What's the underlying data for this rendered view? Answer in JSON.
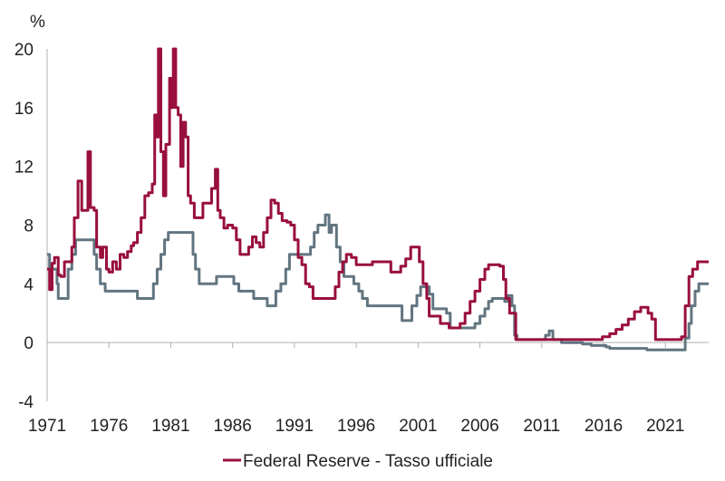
{
  "chart_data": {
    "type": "line",
    "unit_label": "%",
    "ylim": [
      -4,
      20
    ],
    "xlim": [
      1971,
      2024.5
    ],
    "y_ticks": [
      "20",
      "16",
      "12",
      "8",
      "4",
      "0",
      "-4"
    ],
    "y_tick_values": [
      20,
      16,
      12,
      8,
      4,
      0,
      -4
    ],
    "x_ticks": [
      "1971",
      "1976",
      "1981",
      "1986",
      "1991",
      "1996",
      "2001",
      "2006",
      "2011",
      "2016",
      "2021"
    ],
    "x_tick_values": [
      1971,
      1976,
      1981,
      1986,
      1991,
      1996,
      2001,
      2006,
      2011,
      2016,
      2021
    ],
    "grid": false,
    "legend_position": "bottom",
    "series": [
      {
        "name": "Federal Reserve - Tasso ufficiale",
        "color": "#990f3d",
        "points": [
          [
            1971.0,
            5.0
          ],
          [
            1971.2,
            3.6
          ],
          [
            1971.4,
            5.4
          ],
          [
            1971.6,
            5.8
          ],
          [
            1971.9,
            4.6
          ],
          [
            1972.1,
            4.5
          ],
          [
            1972.4,
            5.5
          ],
          [
            1972.7,
            5.5
          ],
          [
            1973.0,
            6.5
          ],
          [
            1973.2,
            8.5
          ],
          [
            1973.5,
            11.0
          ],
          [
            1973.8,
            9.0
          ],
          [
            1974.0,
            9.0
          ],
          [
            1974.3,
            13.0
          ],
          [
            1974.5,
            9.2
          ],
          [
            1974.8,
            9.0
          ],
          [
            1975.0,
            6.5
          ],
          [
            1975.3,
            5.8
          ],
          [
            1975.5,
            6.5
          ],
          [
            1975.8,
            5.0
          ],
          [
            1976.0,
            4.8
          ],
          [
            1976.3,
            5.5
          ],
          [
            1976.6,
            5.0
          ],
          [
            1976.9,
            6.0
          ],
          [
            1977.2,
            5.8
          ],
          [
            1977.5,
            6.2
          ],
          [
            1977.8,
            6.6
          ],
          [
            1978.0,
            6.8
          ],
          [
            1978.3,
            7.5
          ],
          [
            1978.6,
            8.5
          ],
          [
            1978.9,
            10.0
          ],
          [
            1979.2,
            10.2
          ],
          [
            1979.5,
            10.8
          ],
          [
            1979.7,
            15.5
          ],
          [
            1979.8,
            14.0
          ],
          [
            1980.0,
            20.0
          ],
          [
            1980.2,
            13.0
          ],
          [
            1980.4,
            10.0
          ],
          [
            1980.6,
            13.5
          ],
          [
            1980.9,
            18.0
          ],
          [
            1981.0,
            16.0
          ],
          [
            1981.2,
            20.0
          ],
          [
            1981.4,
            16.0
          ],
          [
            1981.6,
            15.5
          ],
          [
            1981.8,
            12.0
          ],
          [
            1982.0,
            15.0
          ],
          [
            1982.2,
            14.0
          ],
          [
            1982.4,
            10.0
          ],
          [
            1982.6,
            9.5
          ],
          [
            1982.9,
            8.5
          ],
          [
            1983.3,
            8.5
          ],
          [
            1983.6,
            9.5
          ],
          [
            1984.0,
            9.5
          ],
          [
            1984.3,
            10.5
          ],
          [
            1984.6,
            11.8
          ],
          [
            1984.8,
            9.0
          ],
          [
            1985.0,
            8.5
          ],
          [
            1985.3,
            7.8
          ],
          [
            1985.6,
            8.0
          ],
          [
            1986.0,
            7.8
          ],
          [
            1986.3,
            7.0
          ],
          [
            1986.6,
            6.0
          ],
          [
            1986.9,
            6.0
          ],
          [
            1987.3,
            6.5
          ],
          [
            1987.6,
            7.2
          ],
          [
            1987.9,
            6.8
          ],
          [
            1988.2,
            6.5
          ],
          [
            1988.5,
            7.5
          ],
          [
            1988.8,
            8.5
          ],
          [
            1989.1,
            9.7
          ],
          [
            1989.4,
            9.5
          ],
          [
            1989.7,
            8.8
          ],
          [
            1990.0,
            8.3
          ],
          [
            1990.4,
            8.2
          ],
          [
            1990.7,
            8.0
          ],
          [
            1991.0,
            7.0
          ],
          [
            1991.3,
            5.8
          ],
          [
            1991.6,
            5.3
          ],
          [
            1991.9,
            4.0
          ],
          [
            1992.2,
            3.8
          ],
          [
            1992.5,
            3.0
          ],
          [
            1993.0,
            3.0
          ],
          [
            1993.5,
            3.0
          ],
          [
            1994.0,
            3.0
          ],
          [
            1994.3,
            3.8
          ],
          [
            1994.6,
            4.8
          ],
          [
            1994.9,
            5.5
          ],
          [
            1995.2,
            6.0
          ],
          [
            1995.6,
            5.8
          ],
          [
            1996.0,
            5.3
          ],
          [
            1996.5,
            5.3
          ],
          [
            1997.0,
            5.3
          ],
          [
            1997.3,
            5.5
          ],
          [
            1998.0,
            5.5
          ],
          [
            1998.5,
            5.5
          ],
          [
            1998.8,
            4.8
          ],
          [
            1999.2,
            4.8
          ],
          [
            1999.6,
            5.2
          ],
          [
            2000.0,
            5.7
          ],
          [
            2000.4,
            6.5
          ],
          [
            2000.9,
            6.5
          ],
          [
            2001.1,
            5.5
          ],
          [
            2001.4,
            4.0
          ],
          [
            2001.7,
            3.0
          ],
          [
            2001.9,
            1.8
          ],
          [
            2002.3,
            1.8
          ],
          [
            2002.8,
            1.3
          ],
          [
            2003.2,
            1.3
          ],
          [
            2003.5,
            1.0
          ],
          [
            2004.0,
            1.0
          ],
          [
            2004.4,
            1.3
          ],
          [
            2004.8,
            2.0
          ],
          [
            2005.2,
            2.8
          ],
          [
            2005.6,
            3.5
          ],
          [
            2006.0,
            4.3
          ],
          [
            2006.4,
            5.0
          ],
          [
            2006.7,
            5.3
          ],
          [
            2007.3,
            5.3
          ],
          [
            2007.6,
            5.2
          ],
          [
            2007.9,
            4.3
          ],
          [
            2008.1,
            3.0
          ],
          [
            2008.4,
            2.0
          ],
          [
            2008.7,
            2.0
          ],
          [
            2008.9,
            0.2
          ],
          [
            2009.5,
            0.2
          ],
          [
            2011.0,
            0.2
          ],
          [
            2013.0,
            0.2
          ],
          [
            2014.5,
            0.2
          ],
          [
            2015.9,
            0.4
          ],
          [
            2016.5,
            0.6
          ],
          [
            2017.0,
            0.9
          ],
          [
            2017.5,
            1.2
          ],
          [
            2018.0,
            1.6
          ],
          [
            2018.5,
            2.1
          ],
          [
            2019.0,
            2.4
          ],
          [
            2019.4,
            2.4
          ],
          [
            2019.6,
            2.0
          ],
          [
            2019.9,
            1.6
          ],
          [
            2020.2,
            0.2
          ],
          [
            2021.0,
            0.2
          ],
          [
            2022.0,
            0.2
          ],
          [
            2022.3,
            0.4
          ],
          [
            2022.6,
            2.5
          ],
          [
            2022.9,
            4.5
          ],
          [
            2023.2,
            5.0
          ],
          [
            2023.6,
            5.5
          ],
          [
            2024.0,
            5.5
          ],
          [
            2024.5,
            5.5
          ]
        ]
      },
      {
        "name": "",
        "color": "#627580",
        "points": [
          [
            1971.0,
            6.0
          ],
          [
            1971.2,
            5.0
          ],
          [
            1971.5,
            5.0
          ],
          [
            1971.8,
            4.0
          ],
          [
            1971.9,
            3.0
          ],
          [
            1972.5,
            3.0
          ],
          [
            1972.7,
            5.0
          ],
          [
            1973.0,
            6.0
          ],
          [
            1973.3,
            7.0
          ],
          [
            1974.0,
            7.0
          ],
          [
            1974.5,
            7.0
          ],
          [
            1974.8,
            6.0
          ],
          [
            1975.0,
            5.0
          ],
          [
            1975.3,
            4.0
          ],
          [
            1975.7,
            3.5
          ],
          [
            1977.0,
            3.5
          ],
          [
            1978.0,
            3.5
          ],
          [
            1978.3,
            3.0
          ],
          [
            1979.3,
            3.0
          ],
          [
            1979.6,
            4.0
          ],
          [
            1979.9,
            5.0
          ],
          [
            1980.2,
            6.0
          ],
          [
            1980.5,
            7.0
          ],
          [
            1980.8,
            7.5
          ],
          [
            1982.0,
            7.5
          ],
          [
            1982.5,
            7.5
          ],
          [
            1982.8,
            6.0
          ],
          [
            1983.0,
            5.0
          ],
          [
            1983.3,
            4.0
          ],
          [
            1984.5,
            4.0
          ],
          [
            1984.7,
            4.5
          ],
          [
            1985.8,
            4.5
          ],
          [
            1986.1,
            4.0
          ],
          [
            1986.5,
            3.5
          ],
          [
            1987.4,
            3.5
          ],
          [
            1987.7,
            3.0
          ],
          [
            1988.5,
            3.0
          ],
          [
            1988.8,
            2.5
          ],
          [
            1989.2,
            2.5
          ],
          [
            1989.5,
            3.5
          ],
          [
            1989.9,
            4.0
          ],
          [
            1990.3,
            5.0
          ],
          [
            1990.6,
            6.0
          ],
          [
            1992.0,
            6.0
          ],
          [
            1992.3,
            6.5
          ],
          [
            1992.6,
            7.5
          ],
          [
            1992.9,
            8.0
          ],
          [
            1993.2,
            8.0
          ],
          [
            1993.5,
            8.7
          ],
          [
            1993.8,
            7.5
          ],
          [
            1994.0,
            8.0
          ],
          [
            1994.4,
            6.5
          ],
          [
            1994.7,
            5.5
          ],
          [
            1995.0,
            4.5
          ],
          [
            1995.4,
            4.5
          ],
          [
            1995.8,
            4.0
          ],
          [
            1996.2,
            3.5
          ],
          [
            1996.5,
            3.0
          ],
          [
            1996.9,
            2.5
          ],
          [
            1998.0,
            2.5
          ],
          [
            1999.0,
            2.5
          ],
          [
            1999.6,
            2.5
          ],
          [
            1999.7,
            1.5
          ],
          [
            2000.2,
            1.5
          ],
          [
            2000.5,
            2.5
          ],
          [
            2000.9,
            3.2
          ],
          [
            2001.2,
            3.8
          ],
          [
            2001.6,
            3.8
          ],
          [
            2001.9,
            3.3
          ],
          [
            2002.2,
            2.3
          ],
          [
            2003.0,
            2.3
          ],
          [
            2003.3,
            2.0
          ],
          [
            2003.6,
            1.0
          ],
          [
            2004.5,
            1.0
          ],
          [
            2005.2,
            1.0
          ],
          [
            2005.6,
            1.3
          ],
          [
            2006.0,
            1.8
          ],
          [
            2006.4,
            2.3
          ],
          [
            2006.7,
            2.8
          ],
          [
            2007.0,
            3.0
          ],
          [
            2007.8,
            3.0
          ],
          [
            2008.0,
            2.8
          ],
          [
            2008.3,
            3.2
          ],
          [
            2008.6,
            2.5
          ],
          [
            2008.8,
            0.5
          ],
          [
            2009.0,
            0.2
          ],
          [
            2010.0,
            0.2
          ],
          [
            2011.3,
            0.5
          ],
          [
            2011.6,
            0.8
          ],
          [
            2011.9,
            0.2
          ],
          [
            2012.6,
            0.0
          ],
          [
            2013.5,
            0.0
          ],
          [
            2014.3,
            -0.1
          ],
          [
            2015.0,
            -0.2
          ],
          [
            2016.2,
            -0.3
          ],
          [
            2016.5,
            -0.4
          ],
          [
            2018.0,
            -0.4
          ],
          [
            2019.5,
            -0.5
          ],
          [
            2021.0,
            -0.5
          ],
          [
            2022.5,
            -0.5
          ],
          [
            2022.6,
            0.3
          ],
          [
            2022.9,
            1.3
          ],
          [
            2023.1,
            2.5
          ],
          [
            2023.4,
            3.5
          ],
          [
            2023.7,
            4.0
          ],
          [
            2024.0,
            4.0
          ],
          [
            2024.5,
            4.0
          ]
        ]
      }
    ]
  }
}
